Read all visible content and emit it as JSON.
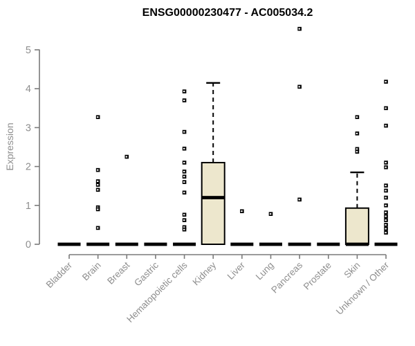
{
  "chart_data": {
    "type": "boxplot",
    "title": "ENSG00000230477 - AC005034.2",
    "ylabel": "Expression",
    "xlabel": "",
    "ylim": [
      0,
      5
    ],
    "yticks": [
      0,
      1,
      2,
      3,
      4,
      5
    ],
    "grid": false,
    "legend": "none",
    "categories": [
      "Bladder",
      "Brain",
      "Breast",
      "Gastric",
      "Hematopoietic cells",
      "Kidney",
      "Liver",
      "Lung",
      "Pancreas",
      "Prostate",
      "Skin",
      "Unknown / Other"
    ],
    "series": [
      {
        "name": "Bladder",
        "q1": 0,
        "median": 0,
        "q3": 0,
        "whisker_low": 0,
        "whisker_high": 0,
        "outliers": []
      },
      {
        "name": "Brain",
        "q1": 0,
        "median": 0,
        "q3": 0,
        "whisker_low": 0,
        "whisker_high": 0,
        "outliers": [
          3.27,
          1.91,
          1.62,
          1.53,
          1.4,
          0.95,
          0.9,
          0.42
        ]
      },
      {
        "name": "Breast",
        "q1": 0,
        "median": 0,
        "q3": 0,
        "whisker_low": 0,
        "whisker_high": 0,
        "outliers": [
          2.25
        ]
      },
      {
        "name": "Gastric",
        "q1": 0,
        "median": 0,
        "q3": 0,
        "whisker_low": 0,
        "whisker_high": 0,
        "outliers": []
      },
      {
        "name": "Hematopoietic cells",
        "q1": 0,
        "median": 0,
        "q3": 0,
        "whisker_low": 0,
        "whisker_high": 0,
        "outliers": [
          3.93,
          3.7,
          2.89,
          2.46,
          2.1,
          1.87,
          1.74,
          1.6,
          1.33,
          0.76,
          0.62,
          0.44,
          0.38
        ]
      },
      {
        "name": "Kidney",
        "q1": 0,
        "median": 1.2,
        "q3": 2.1,
        "whisker_low": 0,
        "whisker_high": 4.15,
        "outliers": []
      },
      {
        "name": "Liver",
        "q1": 0,
        "median": 0,
        "q3": 0,
        "whisker_low": 0,
        "whisker_high": 0,
        "outliers": [
          0.85
        ]
      },
      {
        "name": "Lung",
        "q1": 0,
        "median": 0,
        "q3": 0,
        "whisker_low": 0,
        "whisker_high": 0,
        "outliers": [
          0.78
        ]
      },
      {
        "name": "Pancreas",
        "q1": 0,
        "median": 0,
        "q3": 0,
        "whisker_low": 0,
        "whisker_high": 0,
        "outliers": [
          5.54,
          4.05,
          1.15
        ]
      },
      {
        "name": "Prostate",
        "q1": 0,
        "median": 0,
        "q3": 0,
        "whisker_low": 0,
        "whisker_high": 0,
        "outliers": []
      },
      {
        "name": "Skin",
        "q1": 0,
        "median": 0,
        "q3": 0.93,
        "whisker_low": 0,
        "whisker_high": 1.85,
        "outliers": [
          3.27,
          2.85,
          2.45,
          2.38
        ]
      },
      {
        "name": "Unknown / Other",
        "q1": 0,
        "median": 0,
        "q3": 0,
        "whisker_low": 0,
        "whisker_high": 0,
        "outliers": [
          4.18,
          3.5,
          3.05,
          2.1,
          1.98,
          1.51,
          1.38,
          1.2,
          1.0,
          0.82,
          0.72,
          0.62,
          0.5,
          0.4,
          0.3
        ]
      }
    ],
    "colors": {
      "box_fill": "#EDE7CD",
      "box_border": "#000000",
      "median": "#000000",
      "whisker": "#000000",
      "outlier": "#000000",
      "axis": "#7a7a7a",
      "text": "#8e8e8e",
      "title": "#000000"
    }
  }
}
